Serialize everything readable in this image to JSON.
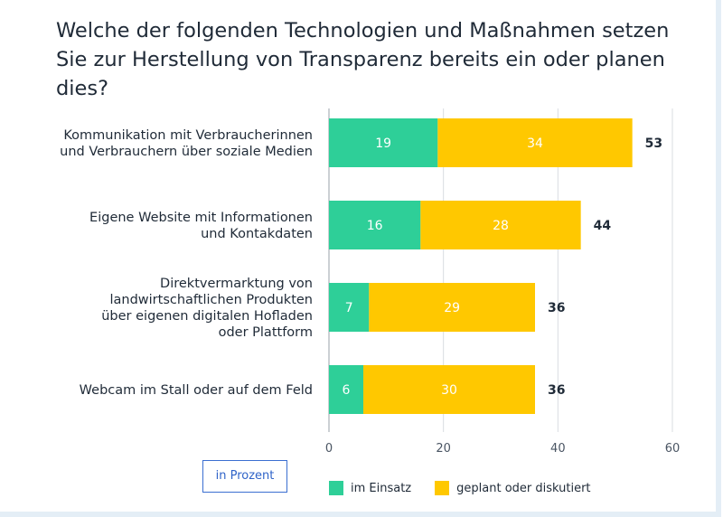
{
  "colors": {
    "in_use": "#2ecf98",
    "planned": "#ffc800",
    "grid": "#d9dde2",
    "axis": "#9aa1a9"
  },
  "chart_data": {
    "type": "bar",
    "orientation": "horizontal",
    "stacked": true,
    "title": [
      "Welche der folgenden Technologien und Maßnahmen setzen",
      "Sie zur Herstellung von Transparenz bereits ein oder planen dies?"
    ],
    "categories": [
      [
        "Kommunikation mit Verbraucherinnen",
        "und Verbrauchern über soziale Medien"
      ],
      [
        "Eigene Website mit Informationen",
        "und Kontakdaten"
      ],
      [
        "Direktvermarktung von",
        "landwirtschaftlichen Produkten",
        "über eigenen digitalen Hofladen",
        "oder Plattform"
      ],
      [
        "Webcam im Stall oder auf dem Feld"
      ]
    ],
    "series": [
      {
        "name": "im Einsatz",
        "values": [
          19,
          16,
          7,
          6
        ]
      },
      {
        "name": "geplant oder diskutiert",
        "values": [
          34,
          28,
          29,
          30
        ]
      }
    ],
    "totals": [
      53,
      44,
      36,
      36
    ],
    "xlim": [
      0,
      60
    ],
    "xticks": [
      "0",
      "20",
      "40",
      "60"
    ],
    "grid": true,
    "unit_note": "in Prozent",
    "legend_position": "bottom"
  }
}
